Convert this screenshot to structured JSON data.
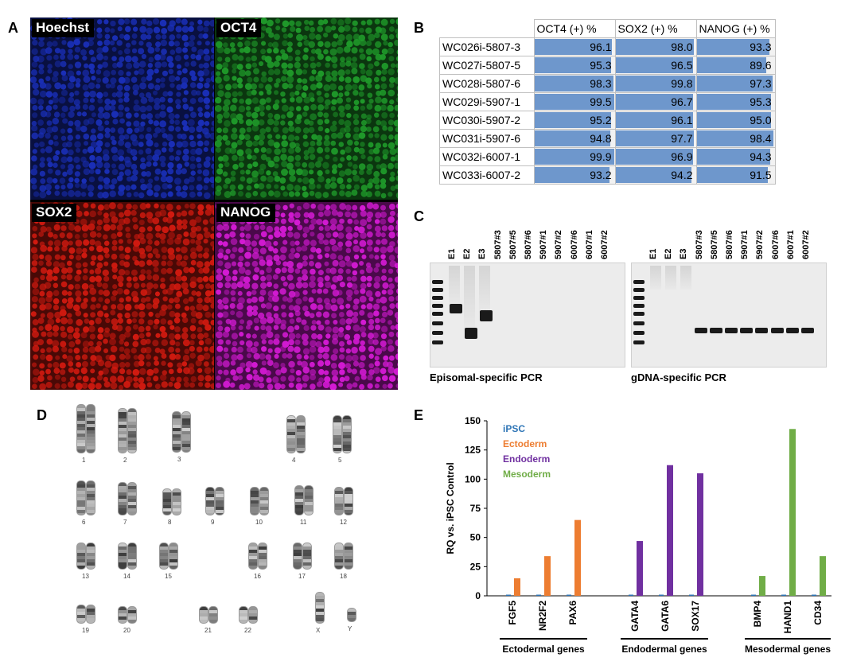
{
  "panel_labels": {
    "a": "A",
    "b": "B",
    "c": "C",
    "d": "D",
    "e": "E"
  },
  "panel_a": {
    "quadrants": [
      {
        "label": "Hoechst",
        "color": "#1a2fb8"
      },
      {
        "label": "OCT4",
        "color": "#1f9a2a"
      },
      {
        "label": "SOX2",
        "color": "#d21a10"
      },
      {
        "label": "NANOG",
        "color": "#d41ad4"
      }
    ]
  },
  "panel_b": {
    "headers": [
      "OCT4 (+) %",
      "SOX2 (+) %",
      "NANOG (+) %"
    ],
    "rows": [
      {
        "name": "WC026i-5807-3",
        "values": [
          "96.1",
          "98.0",
          "93.3"
        ]
      },
      {
        "name": "WC027i-5807-5",
        "values": [
          "95.3",
          "96.5",
          "89.6"
        ]
      },
      {
        "name": "WC028i-5807-6",
        "values": [
          "98.3",
          "99.8",
          "97.3"
        ]
      },
      {
        "name": "WC029i-5907-1",
        "values": [
          "99.5",
          "96.7",
          "95.3"
        ]
      },
      {
        "name": "WC030i-5907-2",
        "values": [
          "95.2",
          "96.1",
          "95.0"
        ]
      },
      {
        "name": "WC031i-5907-6",
        "values": [
          "94.8",
          "97.7",
          "98.4"
        ]
      },
      {
        "name": "WC032i-6007-1",
        "values": [
          "99.9",
          "96.9",
          "94.3"
        ]
      },
      {
        "name": "WC033i-6007-2",
        "values": [
          "93.2",
          "94.2",
          "91.5"
        ]
      }
    ],
    "bar_color": "#6e97cc"
  },
  "panel_c": {
    "left_lanes": [
      "E1",
      "E2",
      "E3",
      "5807#3",
      "5807#5",
      "5807#6",
      "5907#1",
      "5907#2",
      "6007#6",
      "6007#1",
      "6007#2"
    ],
    "right_lanes": [
      "E1",
      "E2",
      "E3",
      "5807#3",
      "5807#5",
      "5807#6",
      "5907#1",
      "5907#2",
      "6007#6",
      "6007#1",
      "6007#2"
    ],
    "left_caption": "Episomal-specific PCR",
    "right_caption": "gDNA-specific PCR"
  },
  "panel_d": {
    "chromosomes": [
      "1",
      "2",
      "3",
      "4",
      "5",
      "6",
      "7",
      "8",
      "9",
      "10",
      "11",
      "12",
      "13",
      "14",
      "15",
      "16",
      "17",
      "18",
      "19",
      "20",
      "21",
      "22",
      "X",
      "Y"
    ]
  },
  "chart_data": {
    "type": "bar",
    "title": "",
    "ylabel": "RQ vs. iPSC Control",
    "ylim": [
      0,
      150
    ],
    "yticks": [
      "0",
      "25",
      "50",
      "75",
      "100",
      "125",
      "150"
    ],
    "grid": false,
    "legend_position": "top-left",
    "categories": [
      "FGF5",
      "NR2F2",
      "PAX6",
      "GATA4",
      "GATA6",
      "SOX17",
      "BMP4",
      "HAND1",
      "CD34"
    ],
    "groups": [
      {
        "label": "Ectodermal genes",
        "categories": [
          "FGF5",
          "NR2F2",
          "PAX6"
        ]
      },
      {
        "label": "Endodermal genes",
        "categories": [
          "GATA4",
          "GATA6",
          "SOX17"
        ]
      },
      {
        "label": "Mesodermal genes",
        "categories": [
          "BMP4",
          "HAND1",
          "CD34"
        ]
      }
    ],
    "series": [
      {
        "name": "iPSC",
        "color": "#2e75b6",
        "values": [
          1,
          1,
          1,
          1,
          1,
          1,
          1,
          1,
          1
        ]
      },
      {
        "name": "Ectoderm",
        "color": "#ed7d31",
        "values": [
          15,
          34,
          65,
          null,
          null,
          null,
          null,
          null,
          null
        ]
      },
      {
        "name": "Endoderm",
        "color": "#7030a0",
        "values": [
          null,
          null,
          null,
          47,
          112,
          105,
          null,
          null,
          null
        ]
      },
      {
        "name": "Mesoderm",
        "color": "#70ad47",
        "values": [
          null,
          null,
          null,
          null,
          null,
          null,
          17,
          143,
          34
        ]
      }
    ]
  }
}
